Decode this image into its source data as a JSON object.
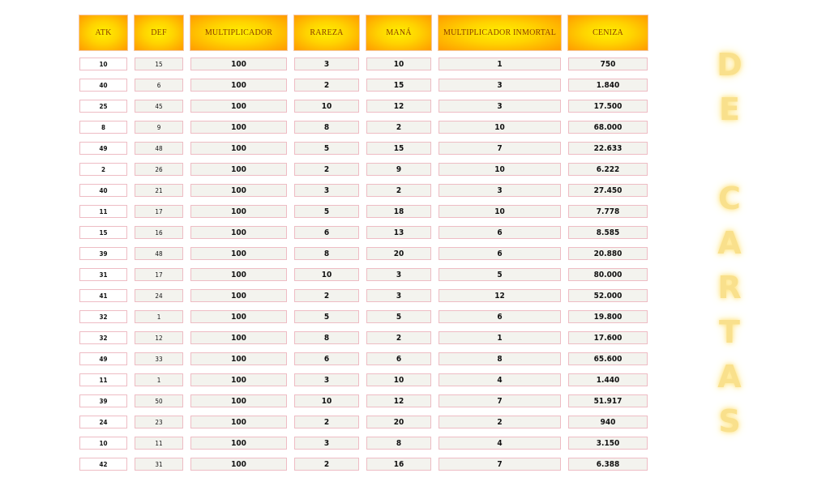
{
  "table": {
    "headers": [
      "ATK",
      "DEF",
      "MULTIPLICADOR",
      "RAREZA",
      "MANÁ",
      "MULTIPLICADOR INMORTAL",
      "CENIZA"
    ],
    "rows": [
      [
        "10",
        "15",
        "100",
        "3",
        "10",
        "1",
        "750"
      ],
      [
        "40",
        "6",
        "100",
        "2",
        "15",
        "3",
        "1.840"
      ],
      [
        "25",
        "45",
        "100",
        "10",
        "12",
        "3",
        "17.500"
      ],
      [
        "8",
        "9",
        "100",
        "8",
        "2",
        "10",
        "68.000"
      ],
      [
        "49",
        "48",
        "100",
        "5",
        "15",
        "7",
        "22.633"
      ],
      [
        "2",
        "26",
        "100",
        "2",
        "9",
        "10",
        "6.222"
      ],
      [
        "40",
        "21",
        "100",
        "3",
        "2",
        "3",
        "27.450"
      ],
      [
        "11",
        "17",
        "100",
        "5",
        "18",
        "10",
        "7.778"
      ],
      [
        "15",
        "16",
        "100",
        "6",
        "13",
        "6",
        "8.585"
      ],
      [
        "39",
        "48",
        "100",
        "8",
        "20",
        "6",
        "20.880"
      ],
      [
        "31",
        "17",
        "100",
        "10",
        "3",
        "5",
        "80.000"
      ],
      [
        "41",
        "24",
        "100",
        "2",
        "3",
        "12",
        "52.000"
      ],
      [
        "32",
        "1",
        "100",
        "5",
        "5",
        "6",
        "19.800"
      ],
      [
        "32",
        "12",
        "100",
        "8",
        "2",
        "1",
        "17.600"
      ],
      [
        "49",
        "33",
        "100",
        "6",
        "6",
        "8",
        "65.600"
      ],
      [
        "11",
        "1",
        "100",
        "3",
        "10",
        "4",
        "1.440"
      ],
      [
        "39",
        "50",
        "100",
        "10",
        "12",
        "7",
        "51.917"
      ],
      [
        "24",
        "23",
        "100",
        "2",
        "20",
        "2",
        "940"
      ],
      [
        "10",
        "11",
        "100",
        "3",
        "8",
        "4",
        "3.150"
      ],
      [
        "42",
        "31",
        "100",
        "2",
        "16",
        "7",
        "6.388"
      ]
    ]
  },
  "side_title": {
    "letters": [
      "D",
      "E",
      "",
      "C",
      "A",
      "R",
      "T",
      "A",
      "S"
    ]
  },
  "colors": {
    "header_gradient_center": "#fff200",
    "header_gradient_edge": "#ff9a00",
    "cell_border": "#eebcc4",
    "title_glow": "#f9e08c"
  }
}
